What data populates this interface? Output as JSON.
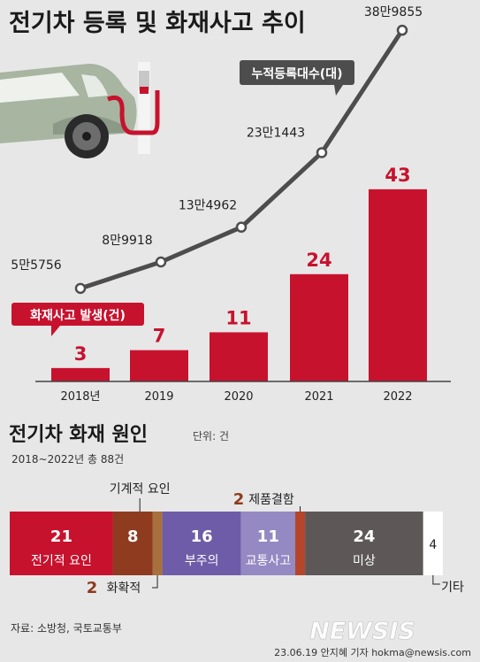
{
  "title": "전기차 등록 및 화재사고 추이",
  "colors": {
    "red": "#c7122e",
    "line": "#4d4d4d",
    "background": "#e7e7e7",
    "car": "#a7b5a1"
  },
  "chart_data": [
    {
      "type": "bar",
      "categories": [
        "2018년",
        "2019",
        "2020",
        "2021",
        "2022"
      ],
      "series": [
        {
          "name": "화재사고 발생(건)",
          "type": "bar",
          "values": [
            3,
            7,
            11,
            24,
            43
          ],
          "value_labels": [
            "3",
            "7",
            "11",
            "24",
            "43"
          ]
        },
        {
          "name": "누적등록대수(대)",
          "type": "line",
          "values": [
            55756,
            89918,
            134962,
            231443,
            389855
          ],
          "value_labels": [
            "5만5756",
            "8만9918",
            "13만4962",
            "23만1443",
            "38만9855"
          ]
        }
      ]
    },
    {
      "type": "bar",
      "title": "전기차 화재 원인",
      "unit": "단위: 건",
      "subtitle": "2018~2022년 총 88건",
      "segments": [
        {
          "label": "전기적 요인",
          "value": 21,
          "color": "#c7122e"
        },
        {
          "label": "기계적 요인",
          "value": 8,
          "color": "#8e3b1f"
        },
        {
          "label": "화확적",
          "value": 2,
          "color": "#a8703d"
        },
        {
          "label": "부주의",
          "value": 16,
          "color": "#6f5ca8"
        },
        {
          "label": "교통사고",
          "value": 11,
          "color": "#9489c2"
        },
        {
          "label": "제품결함",
          "value": 2,
          "color": "#b5462b"
        },
        {
          "label": "미상",
          "value": 24,
          "color": "#5d5757"
        },
        {
          "label": "기타",
          "value": 4,
          "color": "#ffffff"
        }
      ]
    }
  ],
  "source": "자료: 소방청, 국토교통부",
  "credit": "23.06.19 안지혜 기자 hokma@newsis.com",
  "logo": "NEWSIS"
}
